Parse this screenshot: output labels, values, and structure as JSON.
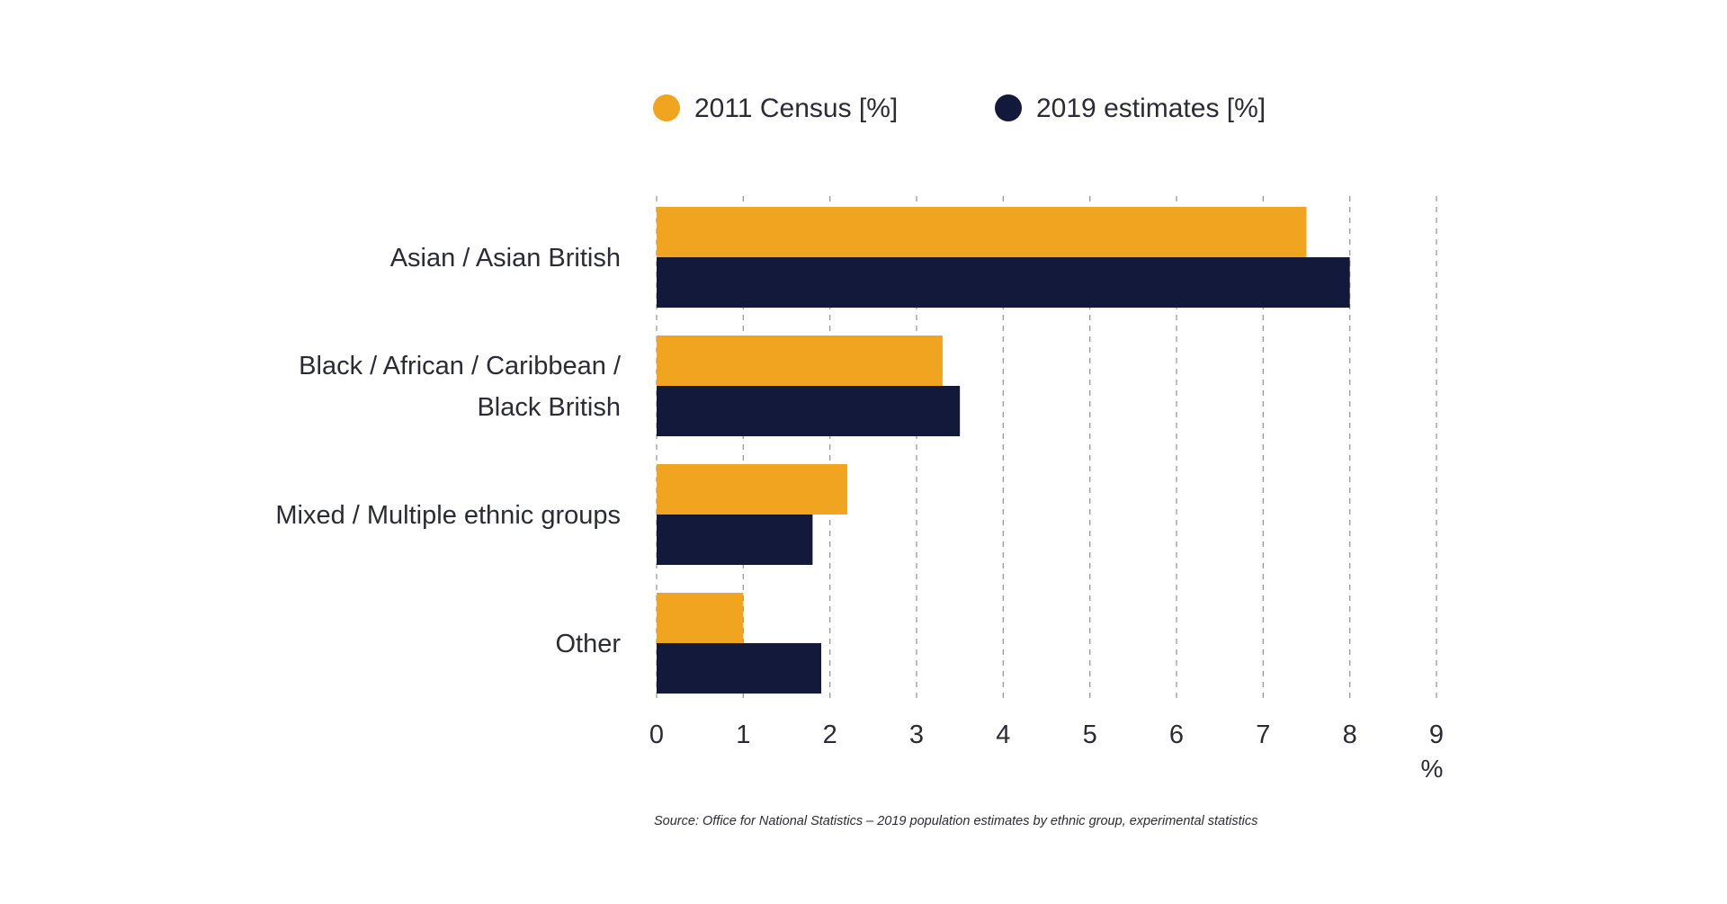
{
  "chart_data": {
    "type": "bar",
    "orientation": "horizontal",
    "title": "",
    "categories": [
      [
        "Asian / Asian British"
      ],
      [
        "Black / African / Caribbean /",
        "Black British"
      ],
      [
        "Mixed / Multiple ethnic groups"
      ],
      [
        "Other"
      ]
    ],
    "series": [
      {
        "name": "2011 Census [%]",
        "color": "#f0a420",
        "values": [
          7.5,
          3.3,
          2.2,
          1.0
        ]
      },
      {
        "name": "2019 estimates [%]",
        "color": "#13193a",
        "values": [
          8.0,
          3.5,
          1.8,
          1.9
        ]
      }
    ],
    "xlim": [
      0,
      9
    ],
    "xticks": [
      "0",
      "1",
      "2",
      "3",
      "4",
      "5",
      "6",
      "7",
      "8",
      "9"
    ],
    "xlabel": "%",
    "ylabel": "",
    "grid": true,
    "legend_position": "top",
    "source": "Source: Office for National Statistics – 2019 population estimates by ethnic group, experimental statistics"
  }
}
